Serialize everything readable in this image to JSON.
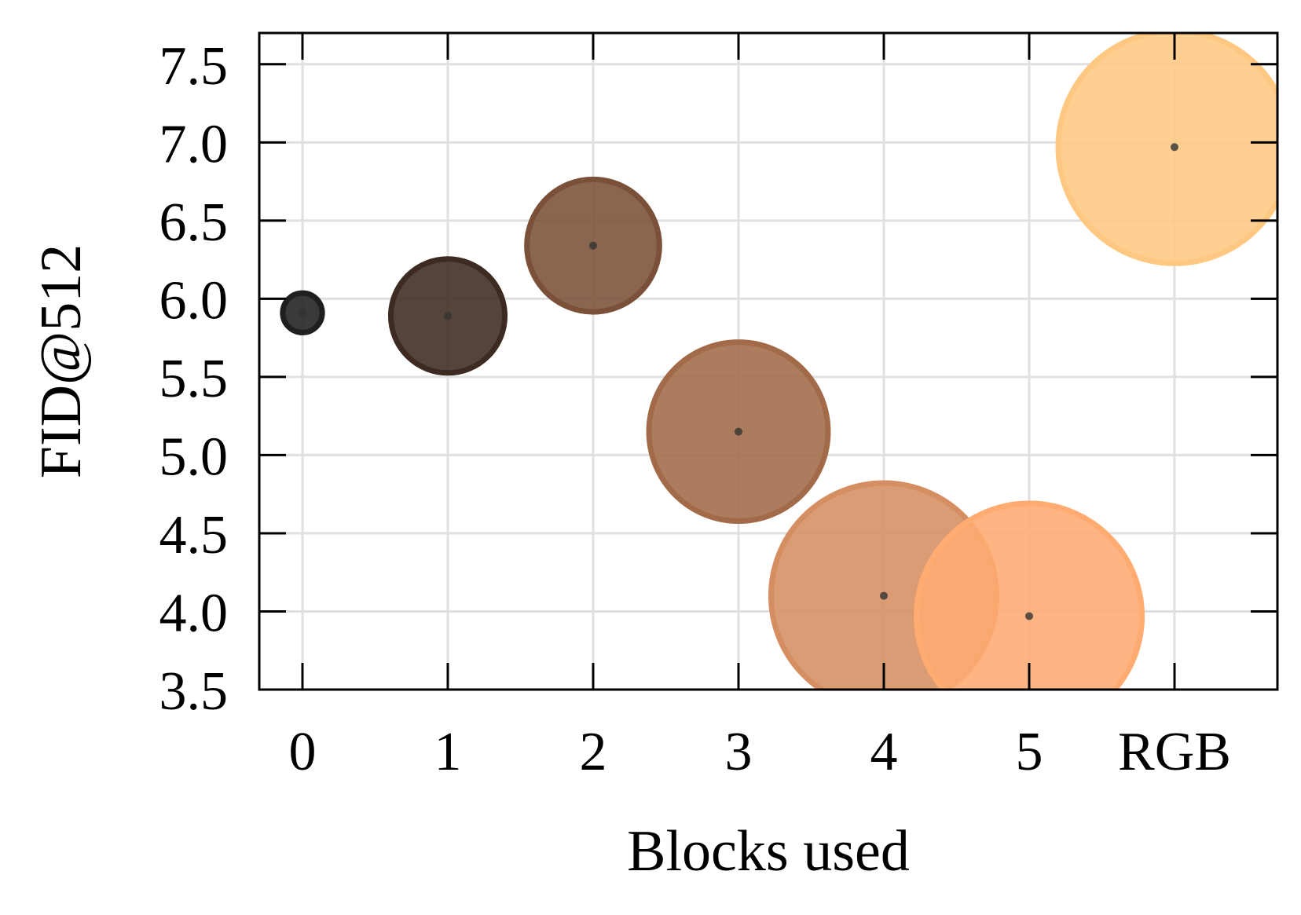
{
  "chart_data": {
    "type": "scatter",
    "xlabel": "Blocks used",
    "ylabel": "FID@512",
    "categories": [
      "0",
      "1",
      "2",
      "3",
      "4",
      "5",
      "RGB"
    ],
    "ylim": [
      3.5,
      7.7
    ],
    "yticks": [
      3.5,
      4.0,
      4.5,
      5.0,
      5.5,
      6.0,
      6.5,
      7.0,
      7.5
    ],
    "grid": true,
    "points": [
      {
        "x": "0",
        "y": 5.91,
        "size": 0.17,
        "color": "#1f1f1f"
      },
      {
        "x": "1",
        "y": 5.89,
        "size": 0.49,
        "color": "#3d2a20"
      },
      {
        "x": "2",
        "y": 6.34,
        "size": 0.57,
        "color": "#7a5038"
      },
      {
        "x": "3",
        "y": 5.15,
        "size": 0.77,
        "color": "#a26a48"
      },
      {
        "x": "4",
        "y": 4.1,
        "size": 0.97,
        "color": "#d48e62"
      },
      {
        "x": "5",
        "y": 3.97,
        "size": 0.97,
        "color": "#ffab72"
      },
      {
        "x": "RGB",
        "y": 6.97,
        "size": 1.0,
        "color": "#ffc882"
      }
    ]
  }
}
